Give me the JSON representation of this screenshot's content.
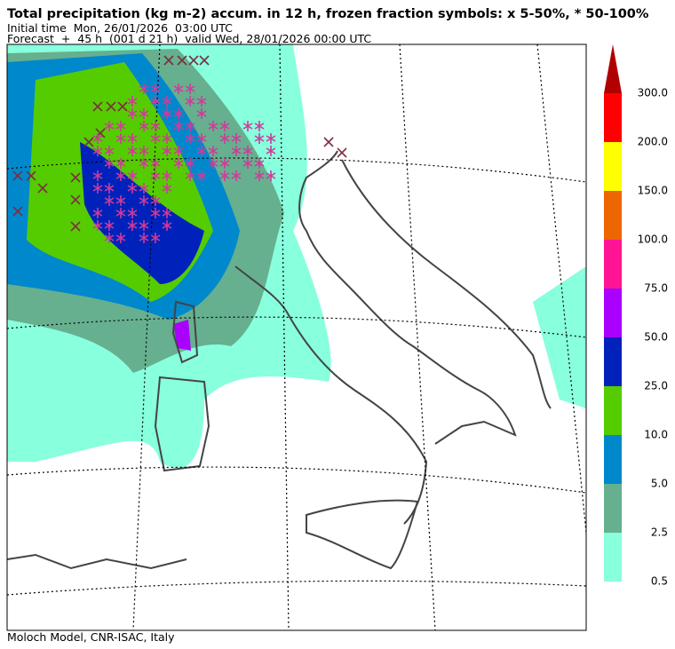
{
  "header": {
    "title": "Total precipitation (kg m-2) accum. in 12 h, frozen fraction symbols: x 5-50%, * 50-100%",
    "initial_time": "Initial time  Mon, 26/01/2026  03:00 UTC",
    "forecast": "Forecast  +  45 h  (001 d 21 h)  valid Wed, 28/01/2026 00:00 UTC"
  },
  "colorbar": {
    "extend_color": "#b00000",
    "colors": [
      "#88ffdd",
      "#66b08f",
      "#0088cc",
      "#55cc00",
      "#0022bb",
      "#aa00ff",
      "#ff1493",
      "#ee6600",
      "#ffff00",
      "#ff0000"
    ],
    "labels": [
      "0.5",
      "2.5",
      "5.0",
      "10.0",
      "25.0",
      "50.0",
      "75.0",
      "100.0",
      "150.0",
      "200.0",
      "300.0"
    ]
  },
  "footer": "Moloch Model, CNR-ISAC, Italy"
}
